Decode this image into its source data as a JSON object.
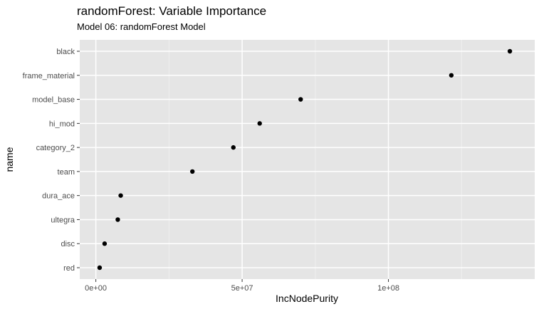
{
  "chart_data": {
    "type": "scatter",
    "title": "randomForest: Variable Importance",
    "subtitle": "Model 06: randomForest Model",
    "xlabel": "IncNodePurity",
    "ylabel": "name",
    "xlim": [
      -5500000,
      150000000
    ],
    "x_ticks": [
      0,
      50000000,
      100000000
    ],
    "x_tick_labels": [
      "0e+00",
      "5e+07",
      "1e+08"
    ],
    "grid": true,
    "legend": "none",
    "categories": [
      "black",
      "frame_material",
      "model_base",
      "hi_mod",
      "category_2",
      "team",
      "dura_ace",
      "ultegra",
      "disc",
      "red"
    ],
    "values": [
      141500000,
      121500000,
      70000000,
      56000000,
      47000000,
      33000000,
      8500000,
      7500000,
      3000000,
      1300000
    ]
  },
  "colors": {
    "panel_background": "#e5e5e5",
    "grid_major": "#ffffff",
    "grid_minor": "#f2f2f2",
    "point": "#000000",
    "tick_text": "#4d4d4d"
  }
}
